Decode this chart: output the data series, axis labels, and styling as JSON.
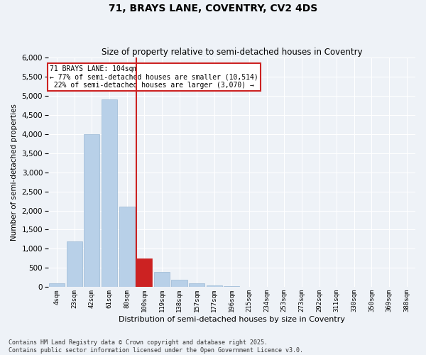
{
  "title1": "71, BRAYS LANE, COVENTRY, CV2 4DS",
  "title2": "Size of property relative to semi-detached houses in Coventry",
  "xlabel": "Distribution of semi-detached houses by size in Coventry",
  "ylabel": "Number of semi-detached properties",
  "property_label": "71 BRAYS LANE: 104sqm",
  "pct_smaller": 77,
  "pct_larger": 22,
  "n_smaller": 10514,
  "n_larger": 3070,
  "bin_labels": [
    "4sqm",
    "23sqm",
    "42sqm",
    "61sqm",
    "80sqm",
    "100sqm",
    "119sqm",
    "138sqm",
    "157sqm",
    "177sqm",
    "196sqm",
    "215sqm",
    "234sqm",
    "253sqm",
    "273sqm",
    "292sqm",
    "311sqm",
    "330sqm",
    "350sqm",
    "369sqm",
    "388sqm"
  ],
  "bar_values": [
    100,
    1200,
    4000,
    4900,
    2100,
    750,
    400,
    200,
    100,
    50,
    20,
    5,
    2,
    0,
    0,
    0,
    0,
    0,
    0,
    0,
    0
  ],
  "bar_color": "#b8d0e8",
  "bar_edge_color": "#9ab8d4",
  "highlight_bar_index": 4,
  "highlight_color": "#cc2222",
  "ylim": [
    0,
    6000
  ],
  "yticks": [
    0,
    500,
    1000,
    1500,
    2000,
    2500,
    3000,
    3500,
    4000,
    4500,
    5000,
    5500,
    6000
  ],
  "background_color": "#eef2f7",
  "grid_color": "#ffffff",
  "footer1": "Contains HM Land Registry data © Crown copyright and database right 2025.",
  "footer2": "Contains public sector information licensed under the Open Government Licence v3.0."
}
